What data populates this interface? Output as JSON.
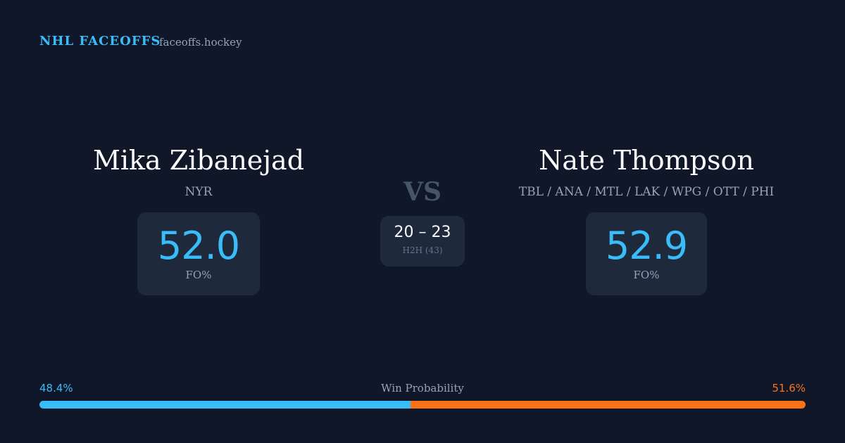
{
  "header": {
    "title": "NHL FACEOFFS",
    "site": "faceoffs.hockey"
  },
  "players": [
    {
      "name": "Mika Zibanejad",
      "teams": "NYR",
      "stat_value": "52.0",
      "stat_label": "FO%"
    },
    {
      "name": "Nate Thompson",
      "teams": "TBL / ANA / MTL / LAK / WPG / OTT / PHI",
      "stat_value": "52.9",
      "stat_label": "FO%"
    }
  ],
  "versus": "VS",
  "h2h": {
    "score": "20 – 23",
    "label": "H2H (43)"
  },
  "win_probability": {
    "title": "Win Probability",
    "left": {
      "value": 48.4,
      "label": "48.4%",
      "color": "#38bdf8"
    },
    "right": {
      "value": 51.6,
      "label": "51.6%",
      "color": "#f97316"
    }
  }
}
